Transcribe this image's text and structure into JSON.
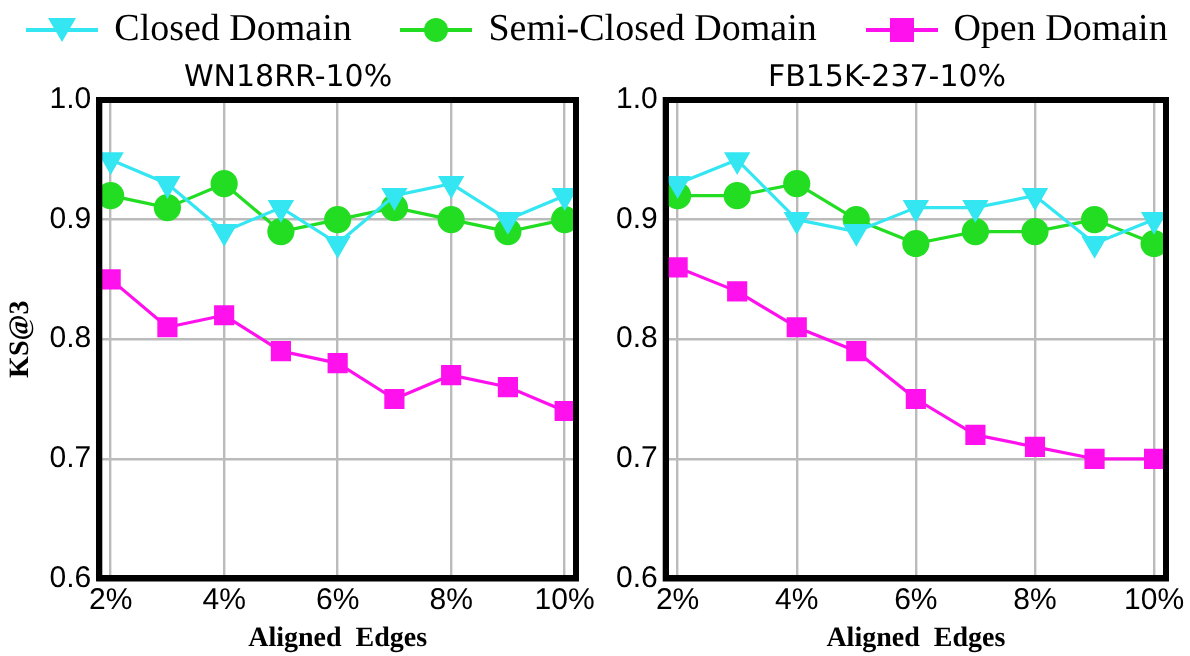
{
  "chart_data": [
    {
      "type": "line",
      "title": "WN18RR-10%",
      "xlabel": "Aligned  Edges",
      "ylabel": "KS@3",
      "x": [
        2,
        3,
        4,
        5,
        6,
        7,
        8,
        9,
        10
      ],
      "xlim": [
        1.8,
        10.2
      ],
      "xticks": [
        {
          "value": 2,
          "label": "2%"
        },
        {
          "value": 4,
          "label": "4%"
        },
        {
          "value": 6,
          "label": "6%"
        },
        {
          "value": 8,
          "label": "8%"
        },
        {
          "value": 10,
          "label": "10%"
        }
      ],
      "ylim": [
        0.6,
        1.0
      ],
      "yticks": [
        {
          "value": 0.6,
          "label": "0.6"
        },
        {
          "value": 0.7,
          "label": "0.7"
        },
        {
          "value": 0.8,
          "label": "0.8"
        },
        {
          "value": 0.9,
          "label": "0.9"
        },
        {
          "value": 1.0,
          "label": "1.0"
        }
      ],
      "grid": true,
      "legend": "top",
      "line_style": "solid",
      "series": [
        {
          "name": "Closed Domain",
          "color": "#33e6f2",
          "marker": "triangle",
          "values": [
            0.95,
            0.93,
            0.89,
            0.91,
            0.88,
            0.92,
            0.93,
            0.9,
            0.92
          ]
        },
        {
          "name": "Semi-Closed Domain",
          "color": "#22dd22",
          "marker": "circle",
          "values": [
            0.92,
            0.91,
            0.93,
            0.89,
            0.9,
            0.91,
            0.9,
            0.89,
            0.9
          ]
        },
        {
          "name": "Open Domain",
          "color": "#ff11ee",
          "marker": "square",
          "values": [
            0.85,
            0.81,
            0.82,
            0.79,
            0.78,
            0.75,
            0.77,
            0.76,
            0.74
          ]
        }
      ]
    },
    {
      "type": "line",
      "title": "FB15K-237-10%",
      "xlabel": "Aligned  Edges",
      "x": [
        2,
        3,
        4,
        5,
        6,
        7,
        8,
        9,
        10
      ],
      "xlim": [
        1.8,
        10.2
      ],
      "xticks": [
        {
          "value": 2,
          "label": "2%"
        },
        {
          "value": 4,
          "label": "4%"
        },
        {
          "value": 6,
          "label": "6%"
        },
        {
          "value": 8,
          "label": "8%"
        },
        {
          "value": 10,
          "label": "10%"
        }
      ],
      "ylim": [
        0.6,
        1.0
      ],
      "yticks": [
        {
          "value": 0.6,
          "label": "0.6"
        },
        {
          "value": 0.7,
          "label": "0.7"
        },
        {
          "value": 0.8,
          "label": "0.8"
        },
        {
          "value": 0.9,
          "label": "0.9"
        },
        {
          "value": 1.0,
          "label": "1.0"
        }
      ],
      "grid": true,
      "line_style": "solid",
      "series": [
        {
          "color": "#33e6f2",
          "marker": "triangle",
          "values": [
            0.93,
            0.95,
            0.9,
            0.89,
            0.91,
            0.91,
            0.92,
            0.88,
            0.9
          ]
        },
        {
          "color": "#22dd22",
          "marker": "circle",
          "values": [
            0.92,
            0.92,
            0.93,
            0.9,
            0.88,
            0.89,
            0.89,
            0.9,
            0.88
          ]
        },
        {
          "color": "#ff11ee",
          "marker": "square",
          "values": [
            0.86,
            0.84,
            0.81,
            0.79,
            0.75,
            0.72,
            0.71,
            0.7,
            0.7
          ]
        }
      ]
    }
  ]
}
